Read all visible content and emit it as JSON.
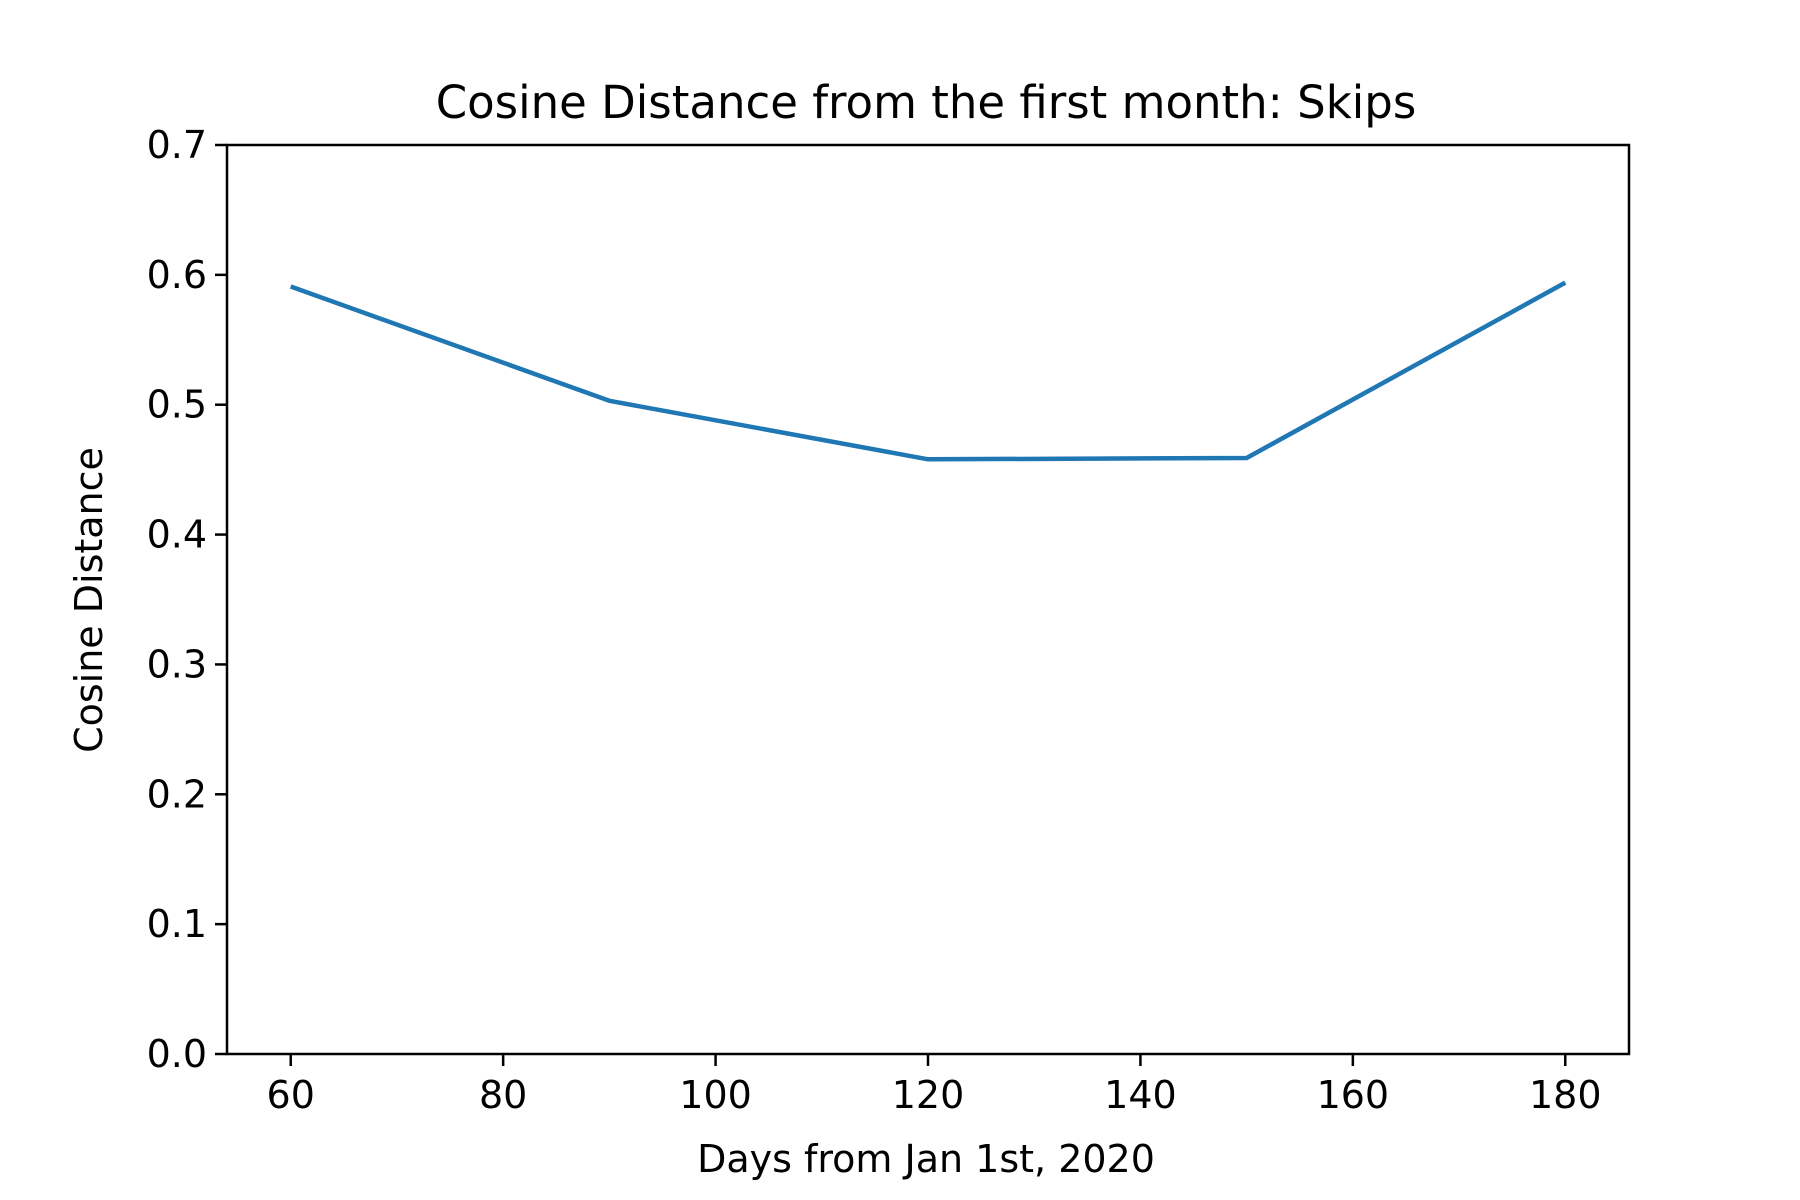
{
  "chart_data": {
    "type": "line",
    "title": "Cosine Distance from the first month: Skips",
    "xlabel": "Days from Jan 1st, 2020",
    "ylabel": "Cosine Distance",
    "xlim": [
      54,
      186
    ],
    "ylim": [
      0.0,
      0.7
    ],
    "x_ticks": [
      60,
      80,
      100,
      120,
      140,
      160,
      180
    ],
    "x_tick_labels": [
      "60",
      "80",
      "100",
      "120",
      "140",
      "160",
      "180"
    ],
    "y_ticks": [
      0.0,
      0.1,
      0.2,
      0.3,
      0.4,
      0.5,
      0.6,
      0.7
    ],
    "y_tick_labels": [
      "0.0",
      "0.1",
      "0.2",
      "0.3",
      "0.4",
      "0.5",
      "0.6",
      "0.7"
    ],
    "grid": false,
    "series": [
      {
        "color": "#1f77b4",
        "x": [
          60,
          90,
          120,
          150,
          180
        ],
        "y": [
          0.591,
          0.503,
          0.458,
          0.459,
          0.594
        ]
      }
    ]
  }
}
